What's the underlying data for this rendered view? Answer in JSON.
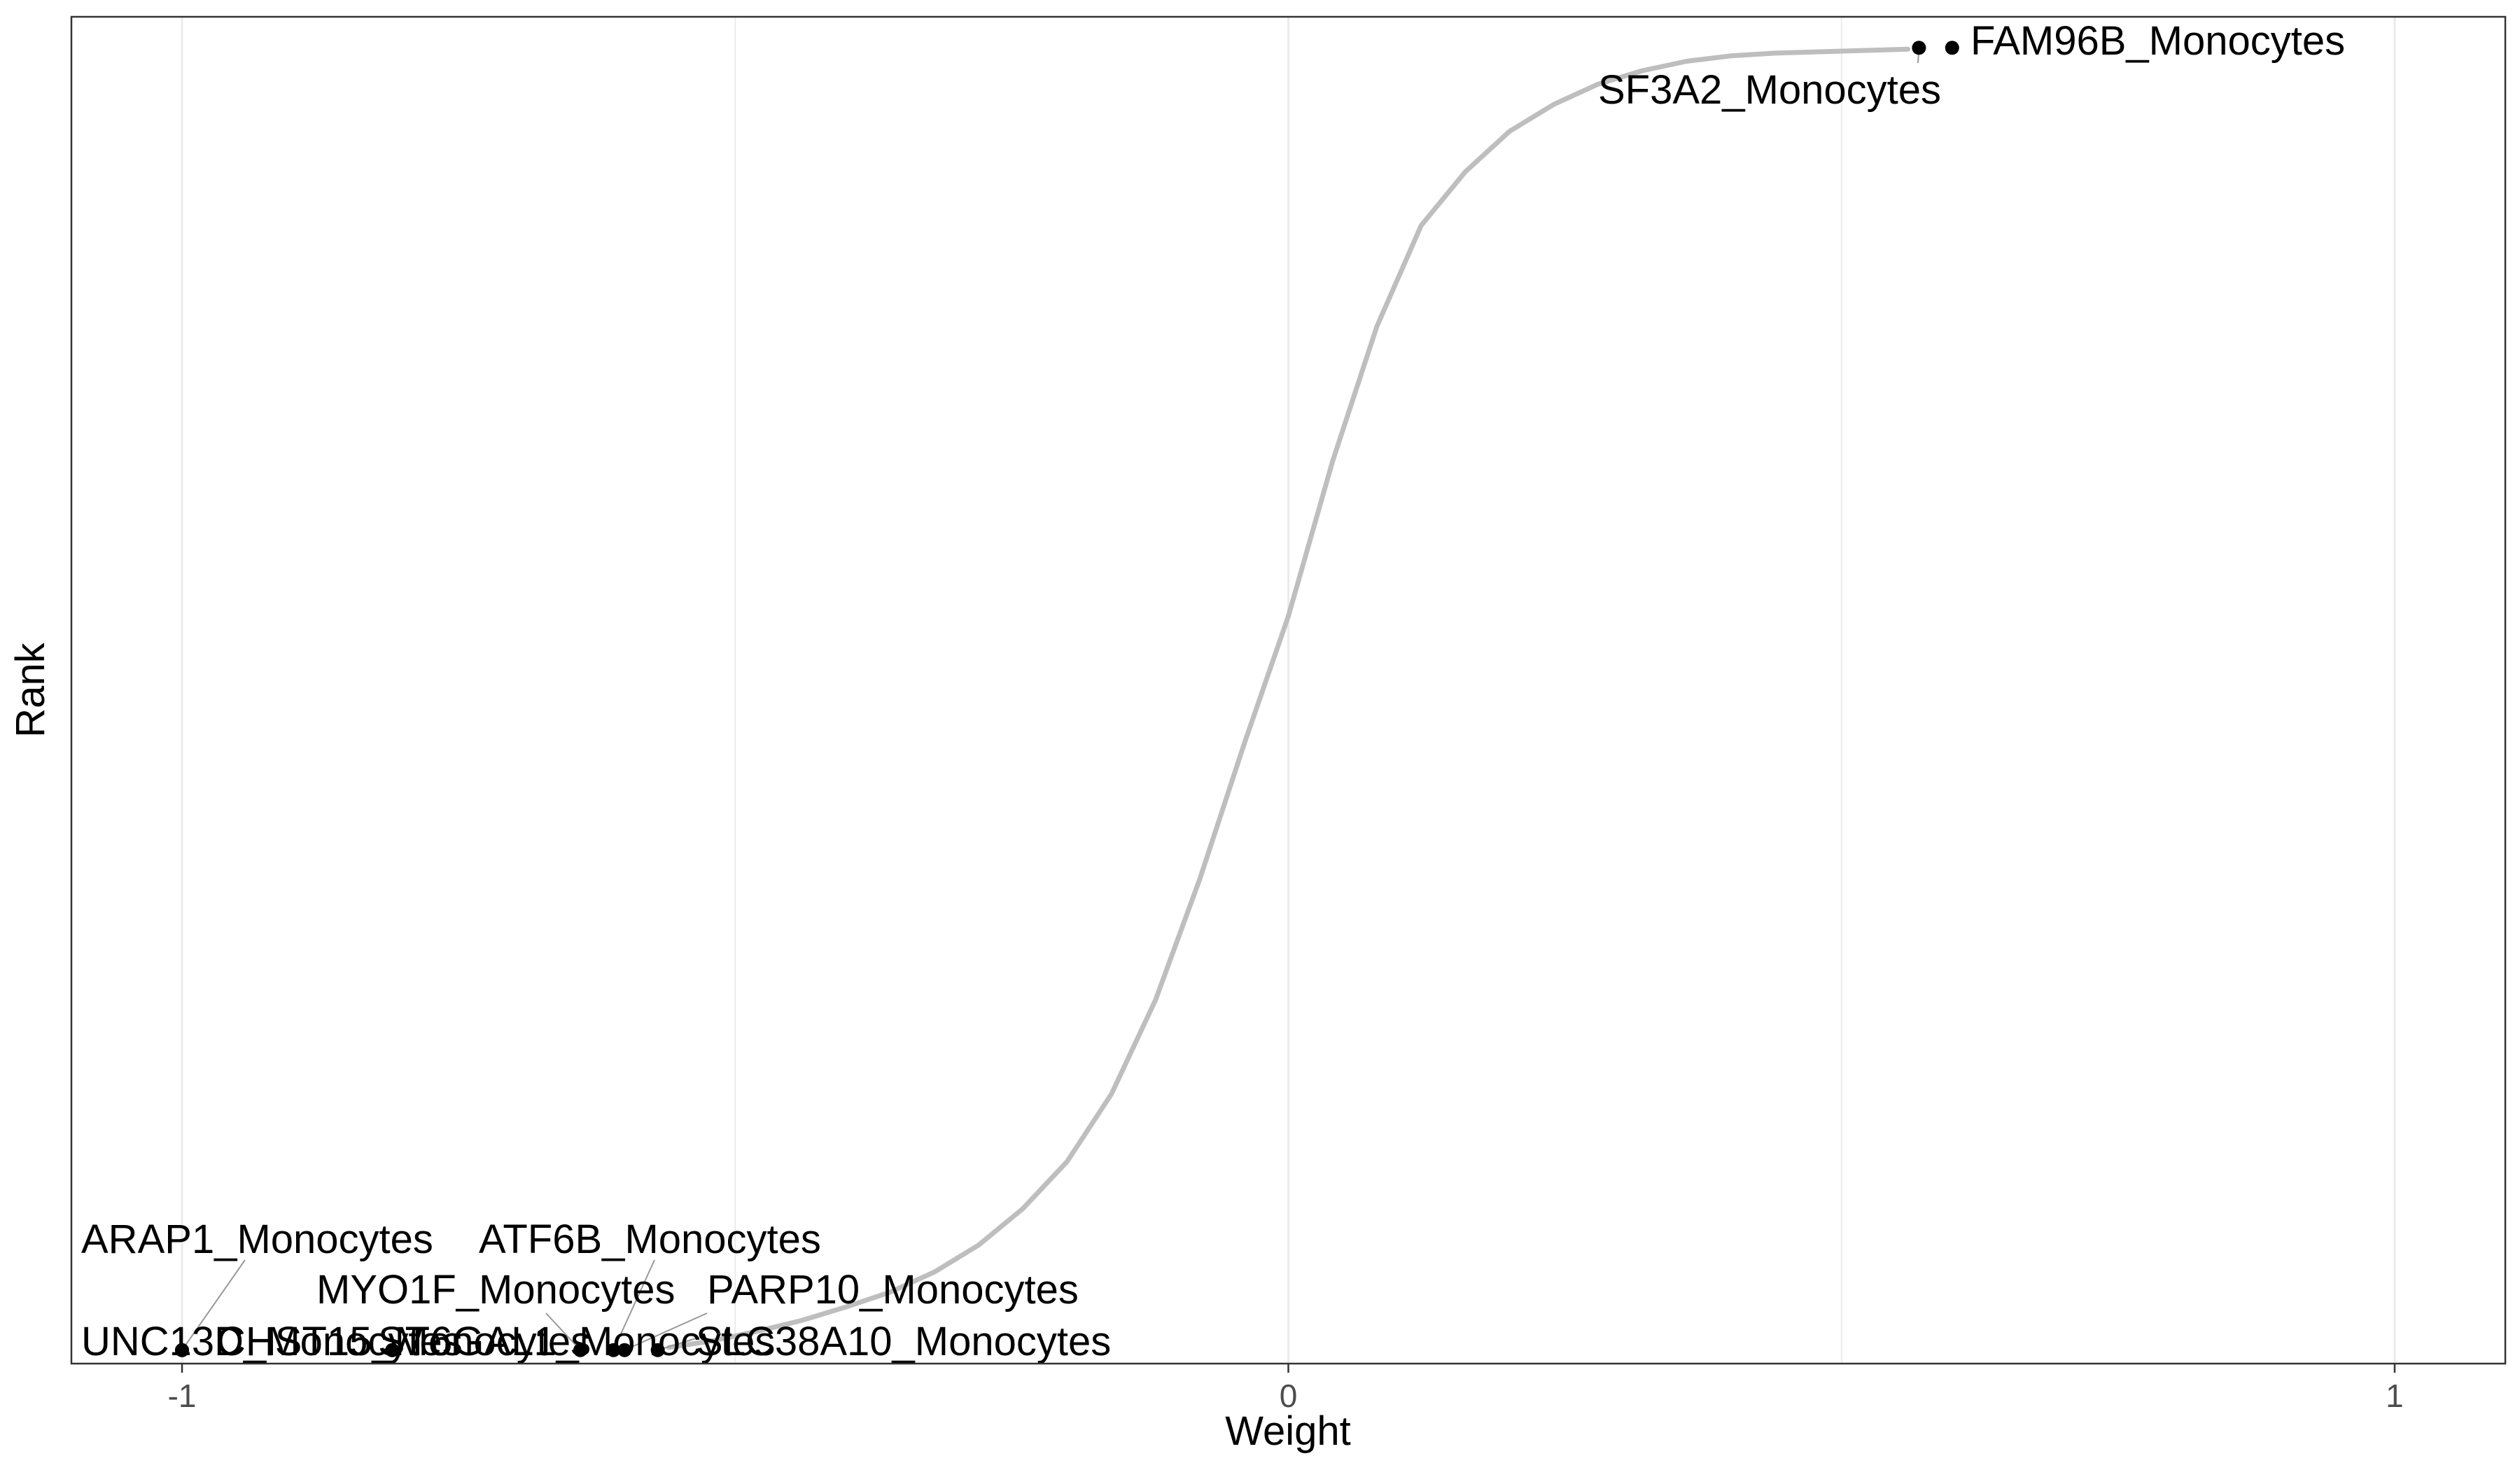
{
  "chart_data": {
    "type": "scatter",
    "xlabel": "Weight",
    "ylabel": "Rank",
    "xlim": [
      -1.1,
      1.1
    ],
    "ylim": [
      0,
      100
    ],
    "x_ticks": [
      -1,
      0,
      1
    ],
    "x_tick_labels": [
      "-1",
      "0",
      "1"
    ],
    "grid": "vertical major and minor lines",
    "legend": "none",
    "colors": {
      "curve": "#bebebe",
      "highlight_points": "#000000",
      "gridlines": "#ebebeb",
      "panel_border": "#333333",
      "leader_lines": "#999999"
    },
    "curve_description_points": [
      [
        -0.56,
        1.2
      ],
      [
        -0.52,
        1.7
      ],
      [
        -0.48,
        2.4
      ],
      [
        -0.44,
        3.2
      ],
      [
        -0.4,
        4.2
      ],
      [
        -0.36,
        5.3
      ],
      [
        -0.32,
        6.8
      ],
      [
        -0.28,
        8.8
      ],
      [
        -0.24,
        11.5
      ],
      [
        -0.2,
        15.0
      ],
      [
        -0.16,
        20.0
      ],
      [
        -0.12,
        27.0
      ],
      [
        -0.08,
        36.0
      ],
      [
        -0.04,
        46.0
      ],
      [
        0.0,
        55.5
      ],
      [
        0.04,
        67.0
      ],
      [
        0.08,
        77.0
      ],
      [
        0.12,
        84.5
      ],
      [
        0.16,
        88.5
      ],
      [
        0.2,
        91.5
      ],
      [
        0.24,
        93.5
      ],
      [
        0.28,
        95.0
      ],
      [
        0.32,
        96.0
      ],
      [
        0.36,
        96.7
      ],
      [
        0.4,
        97.1
      ],
      [
        0.44,
        97.3
      ],
      [
        0.48,
        97.4
      ],
      [
        0.52,
        97.5
      ],
      [
        0.56,
        97.6
      ]
    ],
    "highlighted_points": [
      {
        "label": "ARAP1_Monocytes",
        "x": -1.0,
        "y": 1.0
      },
      {
        "label": "UNC13D_Monocytes",
        "x": -1.0,
        "y": 1.0
      },
      {
        "label": "CHST15_Monocytes",
        "x": -0.81,
        "y": 1.0
      },
      {
        "label": "ST6GAL1_Monocytes",
        "x": -0.81,
        "y": 1.0
      },
      {
        "label": "MYO1F_Monocytes",
        "x": -0.64,
        "y": 1.0
      },
      {
        "label": "ATF6B_Monocytes",
        "x": -0.61,
        "y": 1.0
      },
      {
        "label": "PARP10_Monocytes",
        "x": -0.6,
        "y": 1.0
      },
      {
        "label": "SLC38A10_Monocytes",
        "x": -0.57,
        "y": 1.0
      },
      {
        "label": "SF3A2_Monocytes",
        "x": 0.57,
        "y": 97.7
      },
      {
        "label": "FAM96B_Monocytes",
        "x": 0.6,
        "y": 97.7
      }
    ]
  }
}
